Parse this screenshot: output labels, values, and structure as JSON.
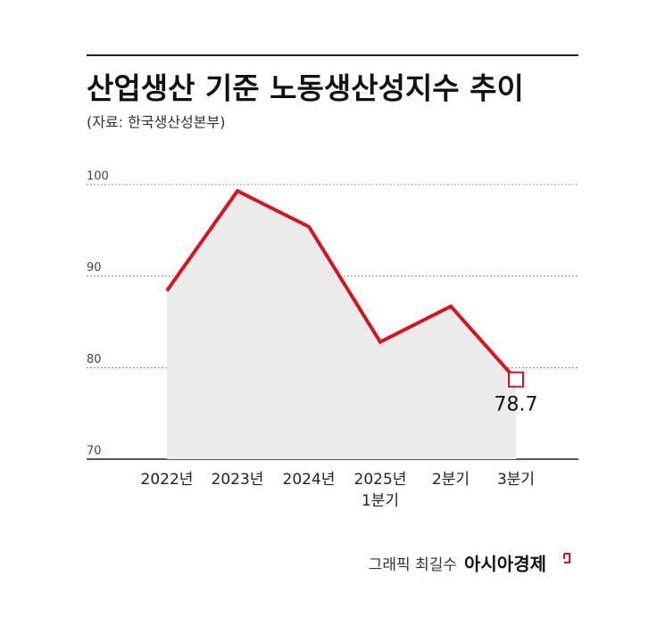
{
  "chart_data": {
    "type": "line",
    "title": "산업생산 기준 노동생산성지수 추이",
    "subtitle": "(자료: 한국생산성본부)",
    "categories": [
      "2022년",
      "2023년",
      "2024년",
      "2025년\n1분기",
      "2분기",
      "3분기"
    ],
    "series": [
      {
        "name": "노동생산성지수",
        "color": "#d7141e",
        "values": [
          88.4,
          99.3,
          95.4,
          82.8,
          86.7,
          78.7
        ]
      }
    ],
    "ylim": [
      70,
      100
    ],
    "yticks": [
      70,
      80,
      90,
      100
    ],
    "grid": true,
    "credit": "그래픽 최길수",
    "publisher": "아시아경제"
  }
}
